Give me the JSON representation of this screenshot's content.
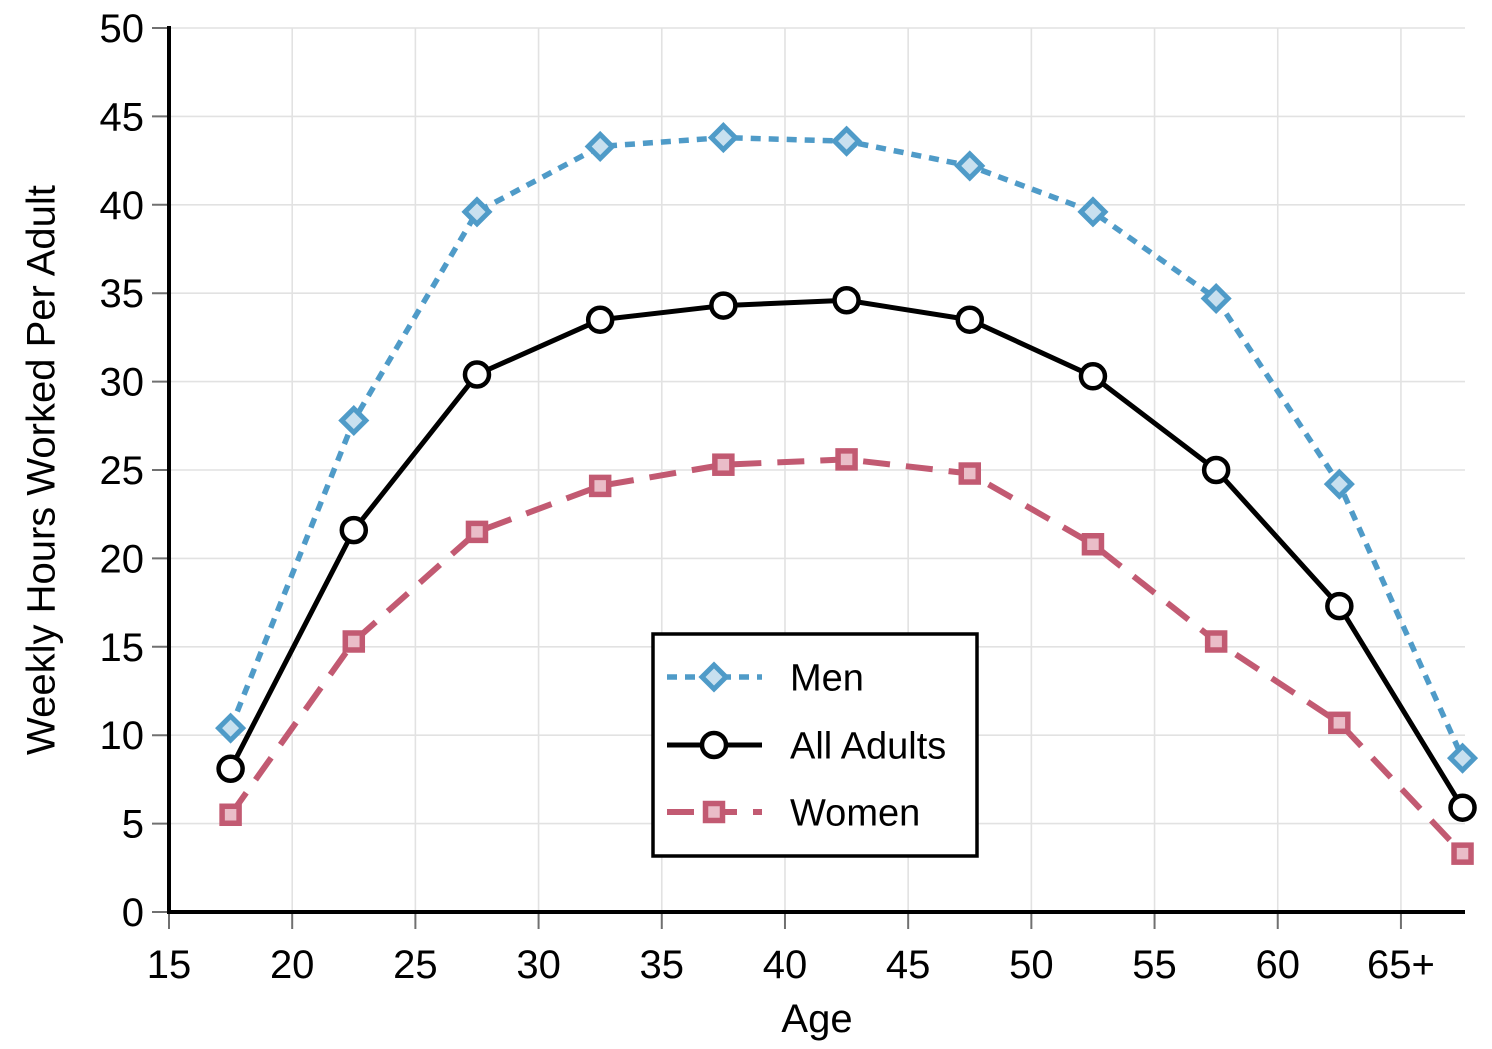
{
  "chart_data": {
    "type": "line",
    "title": "",
    "xlabel": "Age",
    "ylabel": "Weekly Hours Worked Per Adult",
    "x": [
      17.5,
      22.5,
      27.5,
      32.5,
      37.5,
      42.5,
      47.5,
      52.5,
      57.5,
      62.5,
      67.5
    ],
    "series": [
      {
        "name": "Men",
        "values": [
          10.4,
          27.8,
          39.6,
          43.3,
          43.8,
          43.6,
          42.2,
          39.6,
          34.7,
          24.2,
          8.7
        ],
        "line_color": "#4f9bc8",
        "line_style": "dotted",
        "marker": "diamond",
        "marker_fill": "#c8e0ef",
        "marker_stroke": "#4f9bc8"
      },
      {
        "name": "All Adults",
        "values": [
          8.1,
          21.6,
          30.4,
          33.5,
          34.3,
          34.6,
          33.5,
          30.3,
          25.0,
          17.3,
          5.9
        ],
        "line_color": "#000000",
        "line_style": "solid",
        "marker": "circle",
        "marker_fill": "#ffffff",
        "marker_stroke": "#000000"
      },
      {
        "name": "Women",
        "values": [
          5.5,
          15.3,
          21.5,
          24.1,
          25.3,
          25.6,
          24.8,
          20.8,
          15.3,
          10.7,
          3.3
        ],
        "line_color": "#c25a72",
        "line_style": "dashed",
        "marker": "square",
        "marker_fill": "#eabdc8",
        "marker_stroke": "#c25a72"
      }
    ],
    "xlim": [
      15,
      67.6
    ],
    "ylim": [
      0,
      50
    ],
    "xticks": {
      "values": [
        15,
        20,
        25,
        30,
        35,
        40,
        45,
        50,
        55,
        60,
        65
      ],
      "labels": [
        "15",
        "20",
        "25",
        "30",
        "35",
        "40",
        "45",
        "50",
        "55",
        "60",
        "65+"
      ]
    },
    "yticks": {
      "values": [
        0,
        5,
        10,
        15,
        20,
        25,
        30,
        35,
        40,
        45,
        50
      ],
      "labels": [
        "0",
        "5",
        "10",
        "15",
        "20",
        "25",
        "30",
        "35",
        "40",
        "45",
        "50"
      ]
    },
    "grid": true,
    "gridline_color": "#e2e2e2",
    "axis_color": "#000000",
    "tick_color": "#707070",
    "legend": {
      "position": "inside-lower-center",
      "entries": [
        "Men",
        "All Adults",
        "Women"
      ],
      "border_color": "#000000",
      "background": "#ffffff"
    }
  }
}
